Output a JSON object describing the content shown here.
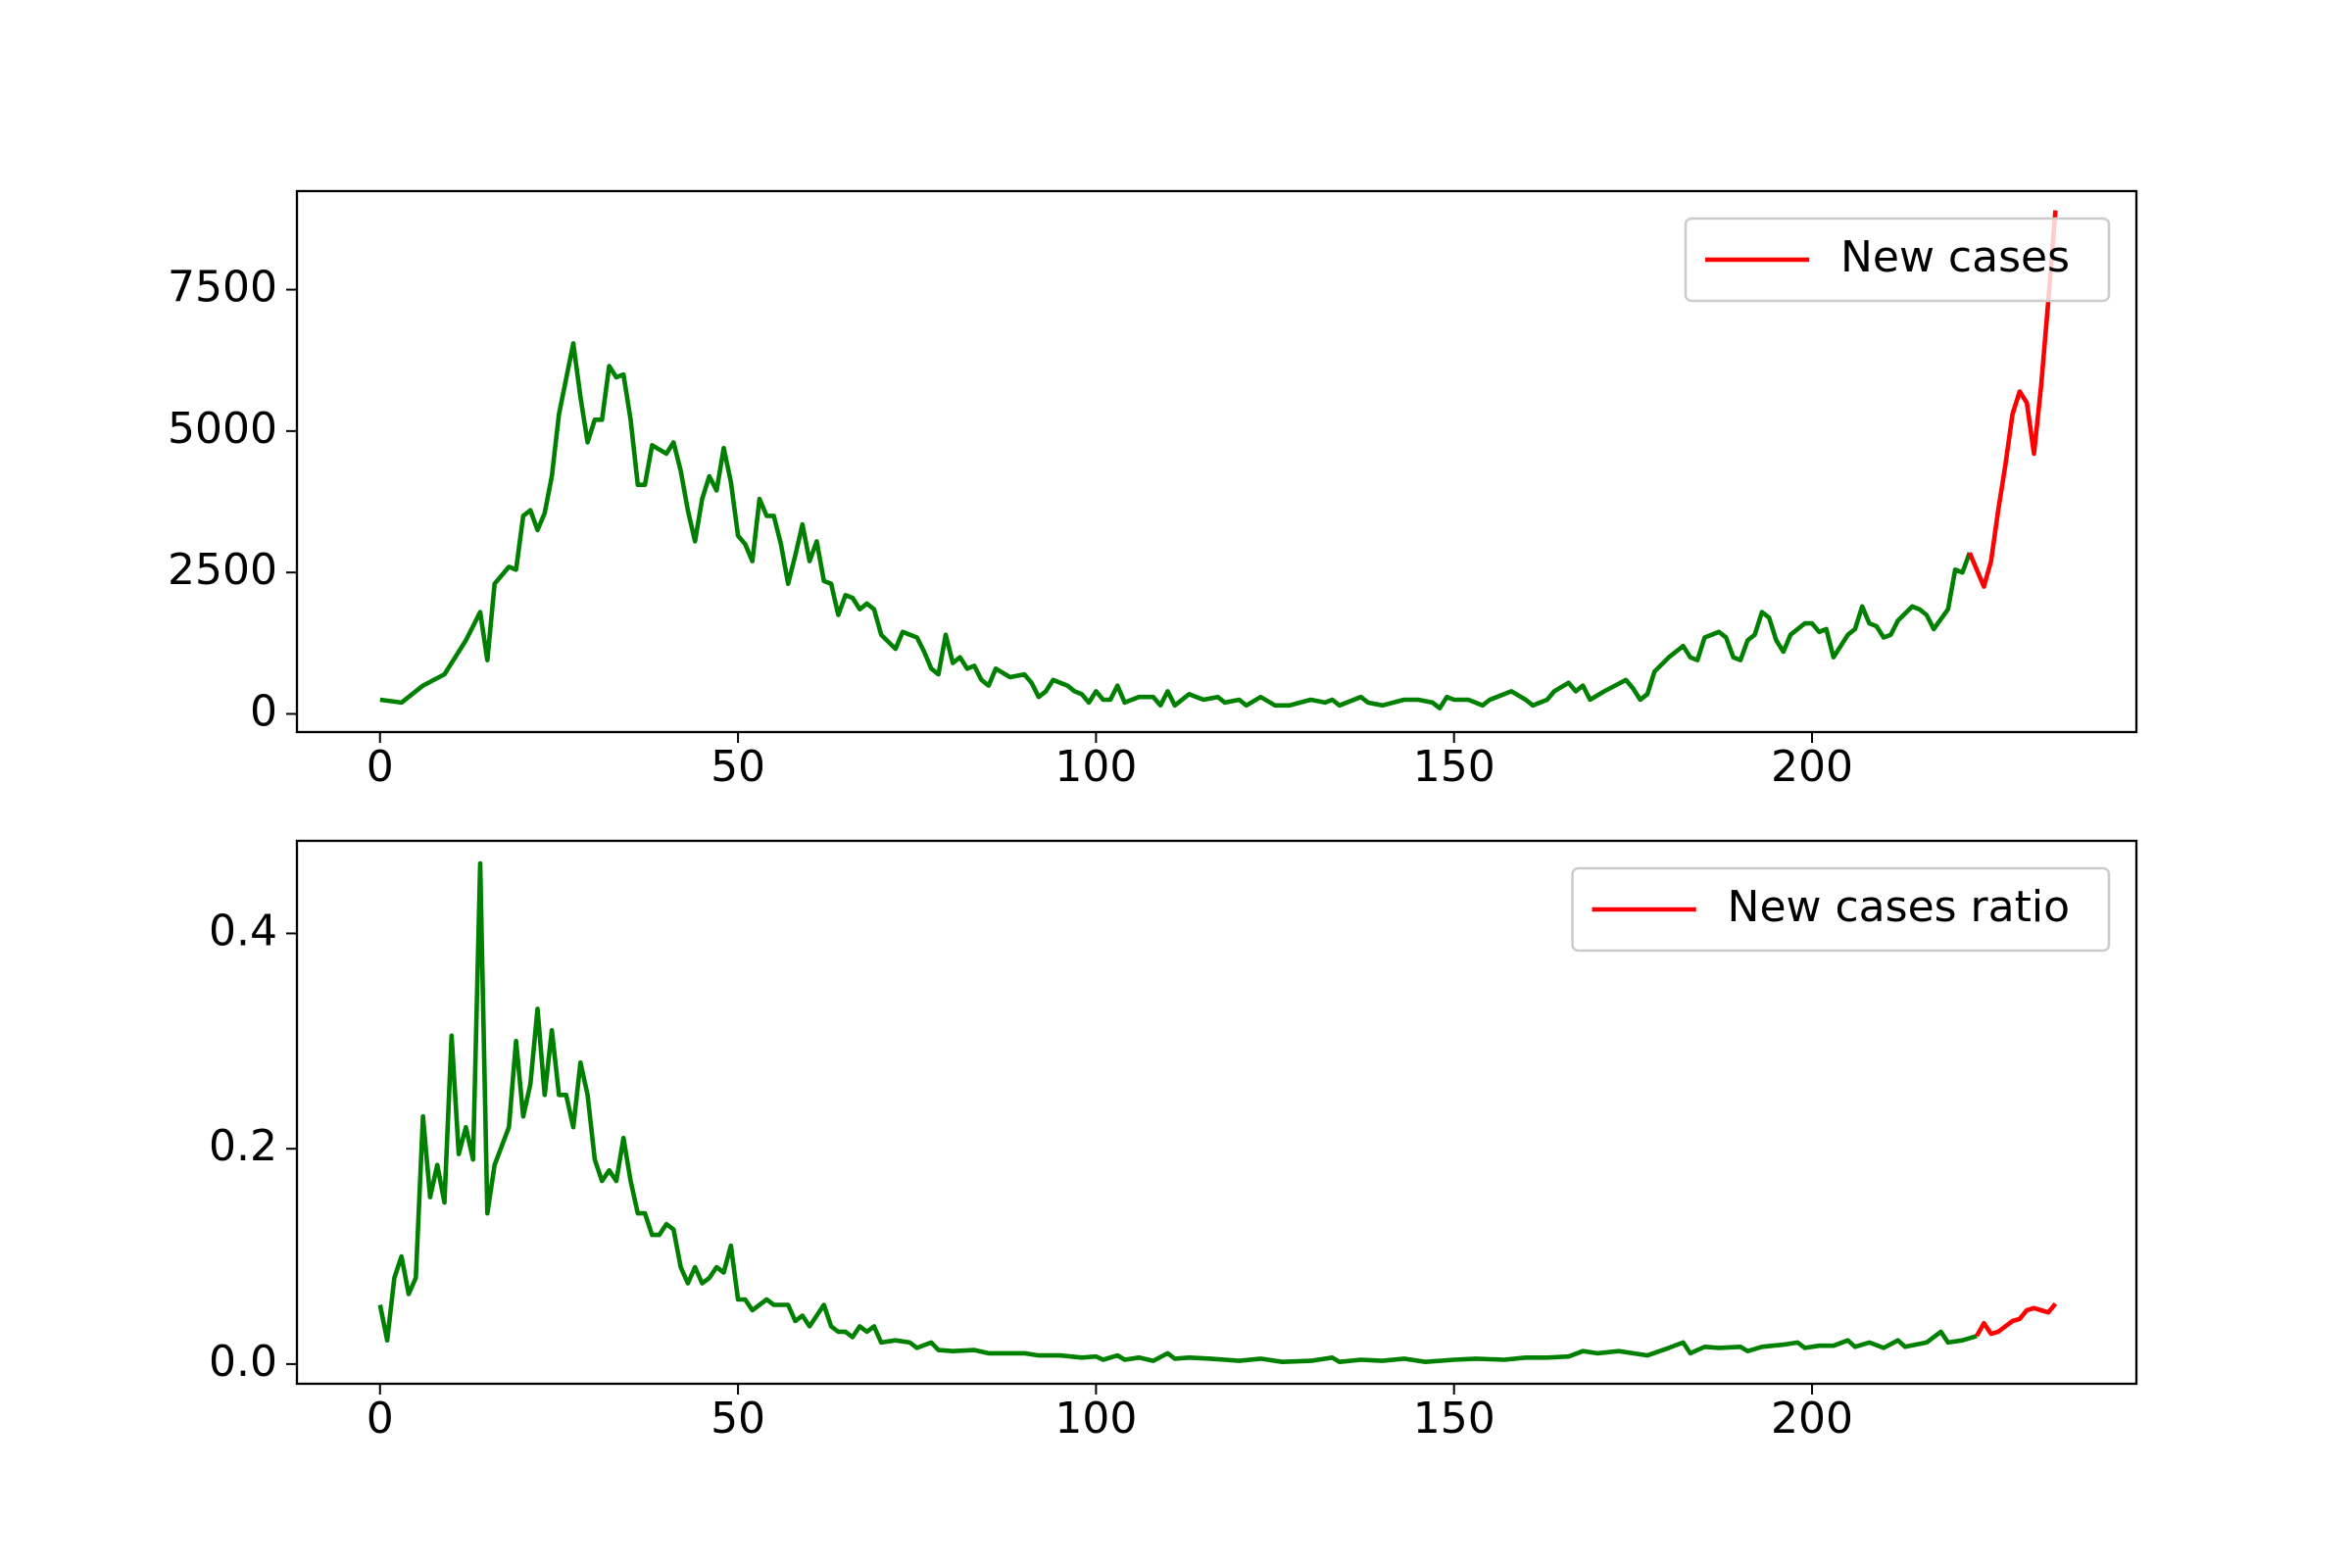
{
  "chart_data": [
    {
      "type": "line",
      "legend": "upper right",
      "xlim": [
        -11.6,
        245.3
      ],
      "xticks": [
        0,
        50,
        100,
        150,
        200
      ],
      "ylim": [
        -321,
        9242
      ],
      "yticks": [
        0,
        2500,
        5000,
        7500
      ],
      "series": [
        {
          "color": "green",
          "x": [
            0,
            3,
            6,
            9,
            12,
            14,
            15,
            16,
            18,
            19,
            20,
            21,
            22,
            23,
            24,
            25,
            27,
            28,
            29,
            30,
            31,
            32,
            33,
            34,
            35,
            36,
            37,
            38,
            40,
            41,
            42,
            43,
            44,
            45,
            46,
            47,
            48,
            49,
            50,
            51,
            52,
            53,
            54,
            55,
            56,
            57,
            58,
            59,
            60,
            61,
            62,
            63,
            64,
            65,
            66,
            67,
            68,
            69,
            70,
            72,
            73,
            75,
            76,
            77,
            78,
            79,
            80,
            81,
            82,
            83,
            84,
            85,
            86,
            88,
            90,
            91,
            92,
            93,
            94,
            96,
            97,
            98,
            99,
            100,
            101,
            102,
            103,
            104,
            106,
            108,
            109,
            110,
            111,
            113,
            115,
            117,
            118,
            120,
            121,
            123,
            125,
            127,
            130,
            132,
            133,
            134,
            137,
            138,
            140,
            143,
            145,
            147,
            148,
            149,
            150,
            152,
            154,
            155,
            157,
            158,
            160,
            161,
            163,
            164,
            166,
            167,
            168,
            169,
            171,
            174,
            175,
            176,
            177,
            178,
            180,
            182,
            183,
            184,
            185,
            187,
            188,
            189,
            190,
            191,
            192,
            193,
            194,
            195,
            196,
            197,
            199,
            200,
            201,
            202,
            203,
            205,
            206,
            207,
            208,
            209,
            210,
            211,
            212,
            214,
            215,
            216,
            217,
            219,
            220,
            221,
            222
          ],
          "values": [
            250,
            200,
            500,
            700,
            1300,
            1800,
            950,
            2300,
            2600,
            2550,
            3500,
            3600,
            3250,
            3550,
            4200,
            5300,
            6550,
            5600,
            4800,
            5200,
            5200,
            6150,
            5950,
            6000,
            5200,
            4050,
            4050,
            4750,
            4600,
            4800,
            4300,
            3600,
            3050,
            3800,
            4200,
            3950,
            4700,
            4100,
            3150,
            3000,
            2700,
            3800,
            3500,
            3500,
            3000,
            2300,
            2800,
            3350,
            2700,
            3050,
            2350,
            2300,
            1750,
            2100,
            2050,
            1850,
            1950,
            1850,
            1400,
            1150,
            1450,
            1350,
            1100,
            800,
            700,
            1400,
            900,
            1000,
            800,
            850,
            600,
            500,
            800,
            650,
            700,
            550,
            300,
            400,
            600,
            500,
            400,
            350,
            200,
            400,
            250,
            250,
            500,
            200,
            300,
            300,
            150,
            400,
            150,
            350,
            250,
            300,
            200,
            250,
            150,
            300,
            150,
            150,
            250,
            200,
            250,
            150,
            300,
            200,
            150,
            250,
            250,
            200,
            100,
            300,
            250,
            250,
            150,
            250,
            350,
            400,
            250,
            150,
            250,
            400,
            550,
            400,
            500,
            250,
            400,
            600,
            450,
            250,
            350,
            750,
            1000,
            1200,
            1000,
            950,
            1350,
            1450,
            1350,
            1000,
            950,
            1300,
            1400,
            1800,
            1700,
            1300,
            1100,
            1400,
            1600,
            1600,
            1450,
            1500,
            1000,
            1400,
            1500,
            1900,
            1600,
            1550,
            1350,
            1400,
            1650,
            1900,
            1850,
            1750,
            1500,
            1850,
            2550,
            2500,
            2850
          ]
        },
        {
          "name": "New cases",
          "color": "red",
          "x": [
            222,
            223,
            224,
            225,
            226,
            227,
            228,
            229,
            230,
            231,
            232,
            233,
            234
          ],
          "values": [
            2850,
            2550,
            2250,
            2700,
            3600,
            4400,
            5300,
            5700,
            5500,
            4600,
            5800,
            7300,
            8900
          ]
        }
      ]
    },
    {
      "type": "line",
      "legend": "upper right",
      "xlim": [
        -11.6,
        245.3
      ],
      "xticks": [
        0,
        50,
        100,
        150,
        200
      ],
      "ylim": [
        -0.0183,
        0.486
      ],
      "yticks": [
        {
          "value": 0,
          "label": "0.0"
        },
        0.2,
        0.4
      ],
      "series": [
        {
          "color": "green",
          "x": [
            0,
            1,
            2,
            3,
            4,
            5,
            6,
            7,
            8,
            9,
            10,
            11,
            12,
            13,
            14,
            15,
            16,
            18,
            19,
            20,
            21,
            22,
            23,
            24,
            25,
            26,
            27,
            28,
            29,
            30,
            31,
            32,
            33,
            34,
            35,
            36,
            37,
            38,
            39,
            40,
            41,
            42,
            43,
            44,
            45,
            46,
            47,
            48,
            49,
            50,
            51,
            52,
            53,
            54,
            55,
            57,
            58,
            59,
            60,
            61,
            62,
            63,
            64,
            65,
            66,
            67,
            68,
            69,
            70,
            72,
            74,
            75,
            77,
            78,
            80,
            83,
            85,
            88,
            90,
            92,
            95,
            98,
            100,
            101,
            103,
            104,
            106,
            108,
            110,
            111,
            113,
            116,
            118,
            120,
            123,
            126,
            130,
            133,
            134,
            137,
            140,
            143,
            146,
            150,
            153,
            157,
            160,
            163,
            166,
            168,
            170,
            173,
            175,
            177,
            180,
            182,
            183,
            185,
            187,
            190,
            191,
            193,
            196,
            198,
            199,
            201,
            203,
            205,
            206,
            208,
            210,
            212,
            213,
            216,
            218,
            219,
            221,
            223
          ],
          "values": [
            0.055,
            0.022,
            0.08,
            0.1,
            0.065,
            0.08,
            0.23,
            0.155,
            0.185,
            0.15,
            0.305,
            0.195,
            0.22,
            0.19,
            0.465,
            0.14,
            0.185,
            0.22,
            0.3,
            0.23,
            0.26,
            0.33,
            0.25,
            0.31,
            0.25,
            0.25,
            0.22,
            0.28,
            0.25,
            0.19,
            0.17,
            0.18,
            0.17,
            0.21,
            0.17,
            0.14,
            0.14,
            0.12,
            0.12,
            0.13,
            0.125,
            0.09,
            0.075,
            0.09,
            0.075,
            0.08,
            0.09,
            0.085,
            0.11,
            0.06,
            0.06,
            0.05,
            0.055,
            0.06,
            0.055,
            0.055,
            0.04,
            0.045,
            0.035,
            0.045,
            0.055,
            0.035,
            0.03,
            0.03,
            0.025,
            0.035,
            0.03,
            0.035,
            0.02,
            0.022,
            0.02,
            0.015,
            0.02,
            0.013,
            0.012,
            0.013,
            0.01,
            0.01,
            0.01,
            0.008,
            0.008,
            0.006,
            0.007,
            0.004,
            0.008,
            0.004,
            0.006,
            0.003,
            0.01,
            0.005,
            0.006,
            0.005,
            0.004,
            0.003,
            0.005,
            0.002,
            0.003,
            0.006,
            0.002,
            0.004,
            0.003,
            0.005,
            0.002,
            0.004,
            0.005,
            0.004,
            0.006,
            0.006,
            0.007,
            0.012,
            0.01,
            0.012,
            0.01,
            0.008,
            0.015,
            0.02,
            0.01,
            0.016,
            0.015,
            0.016,
            0.012,
            0.016,
            0.018,
            0.02,
            0.015,
            0.017,
            0.017,
            0.022,
            0.016,
            0.02,
            0.015,
            0.022,
            0.016,
            0.02,
            0.03,
            0.02,
            0.022,
            0.026
          ]
        },
        {
          "name": "New cases ratio",
          "color": "red",
          "x": [
            223,
            224,
            225,
            226,
            227,
            228,
            229,
            230,
            231,
            232,
            233,
            234
          ],
          "values": [
            0.026,
            0.038,
            0.028,
            0.03,
            0.035,
            0.04,
            0.042,
            0.05,
            0.052,
            0.05,
            0.048,
            0.056
          ]
        }
      ]
    }
  ]
}
